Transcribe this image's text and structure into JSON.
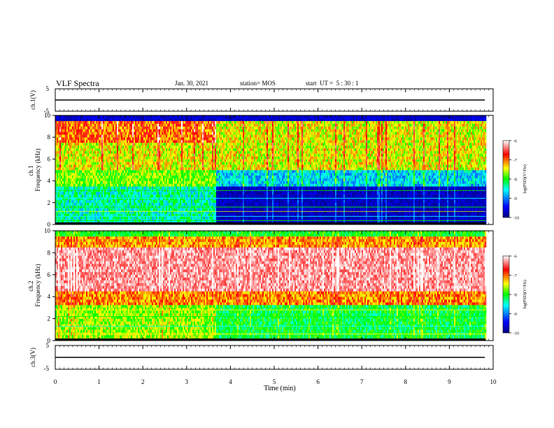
{
  "header": {
    "title": "VLF Spectra",
    "date": "Jan. 30, 2021",
    "station": "station= MOS",
    "start_ut": "start  UT =  5 : 30 : 1"
  },
  "chart_data": [
    {
      "type": "line",
      "ylabel": "ch.1(V)",
      "ylim": [
        -5,
        5
      ],
      "yticks": [
        "5",
        "-5"
      ],
      "series": [
        {
          "x": [
            0,
            9.83
          ],
          "y": [
            0,
            0
          ]
        }
      ]
    },
    {
      "type": "heatmap",
      "ylabel": "ch.1\nFrequency (kHz)",
      "ylim": [
        0,
        10
      ],
      "yticks": [
        "0",
        "2",
        "4",
        "6",
        "8",
        "10"
      ],
      "xlim": [
        0,
        10
      ],
      "colorbar": {
        "label": "log(PSD)(V²/Hz)",
        "ticks": [
          "-6",
          "-7",
          "-8",
          "-9",
          "-10"
        ],
        "range": [
          -10,
          -6
        ]
      }
    },
    {
      "type": "heatmap",
      "ylabel": "ch.2\nFrequency (kHz)",
      "ylim": [
        0,
        10
      ],
      "yticks": [
        "0",
        "2",
        "4",
        "6",
        "8",
        "10"
      ],
      "xlim": [
        0,
        10
      ],
      "colorbar": {
        "label": "log(PSD)(V²/Hz)",
        "ticks": [
          "-6",
          "-7",
          "-8",
          "-9",
          "-10"
        ],
        "range": [
          -10,
          -6
        ]
      }
    },
    {
      "type": "line",
      "ylabel": "ch.3(V)",
      "ylim": [
        -5,
        5
      ],
      "yticks": [
        "5",
        "-5"
      ],
      "series": [
        {
          "x": [
            0,
            9.83
          ],
          "y": [
            0,
            0
          ]
        }
      ]
    }
  ],
  "x_axis": {
    "label": "Time (min)",
    "ticks": [
      "0",
      "1",
      "2",
      "3",
      "4",
      "5",
      "6",
      "7",
      "8",
      "9",
      "10"
    ],
    "range": [
      0,
      10
    ],
    "data_end": 9.83,
    "regime_change": 3.65
  },
  "colors": {
    "jet": [
      "#000080",
      "#0000ff",
      "#00ffff",
      "#00ff00",
      "#ffff00",
      "#ff0000",
      "#ffffff"
    ]
  }
}
